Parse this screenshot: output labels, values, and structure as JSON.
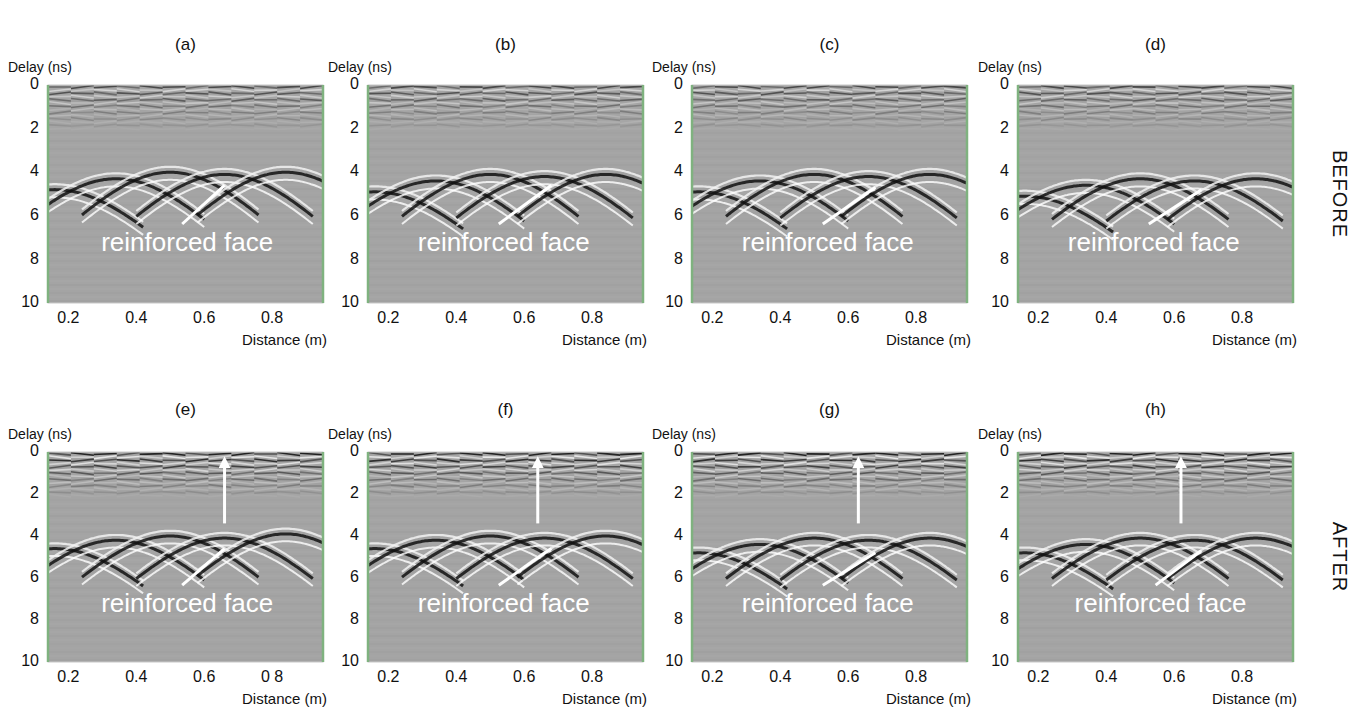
{
  "chart_data": [
    {
      "type": "radargram",
      "title": "(a)",
      "x_label": "Distance (m)",
      "y_label": "Delay (ns)",
      "xlim": [
        0.14,
        0.95
      ],
      "ylim": [
        0,
        10
      ],
      "xticks": [
        0.2,
        0.4,
        0.6,
        0.8
      ],
      "yticks": [
        0,
        2,
        4,
        6,
        8,
        10
      ],
      "reflectors": {
        "x": [
          0.16,
          0.34,
          0.5,
          0.66,
          0.84
        ],
        "delay": [
          4.8,
          4.3,
          4.0,
          4.1,
          4.0
        ]
      },
      "annotation": {
        "text": "reinforced face",
        "x": 0.55,
        "y": 7.3,
        "point_x": 0.66,
        "point_y": 4.6
      }
    },
    {
      "type": "radargram",
      "title": "(b)",
      "x_label": "Distance (m)",
      "y_label": "Delay (ns)",
      "xlim": [
        0.14,
        0.95
      ],
      "ylim": [
        0,
        10
      ],
      "xticks": [
        0.2,
        0.4,
        0.6,
        0.8
      ],
      "yticks": [
        0,
        2,
        4,
        6,
        8,
        10
      ],
      "reflectors": {
        "x": [
          0.16,
          0.34,
          0.5,
          0.66,
          0.84
        ],
        "delay": [
          4.9,
          4.4,
          4.1,
          4.2,
          4.1
        ]
      },
      "annotation": {
        "text": "reinforced face",
        "x": 0.54,
        "y": 7.3,
        "point_x": 0.68,
        "point_y": 4.6
      }
    },
    {
      "type": "radargram",
      "title": "(c)",
      "x_label": "Distance (m)",
      "y_label": "Delay (ns)",
      "xlim": [
        0.14,
        0.95
      ],
      "ylim": [
        0,
        10
      ],
      "xticks": [
        0.2,
        0.4,
        0.6,
        0.8
      ],
      "yticks": [
        0,
        2,
        4,
        6,
        8,
        10
      ],
      "reflectors": {
        "x": [
          0.16,
          0.34,
          0.5,
          0.66,
          0.84
        ],
        "delay": [
          4.9,
          4.4,
          4.1,
          4.2,
          4.1
        ]
      },
      "annotation": {
        "text": "reinforced face",
        "x": 0.54,
        "y": 7.3,
        "point_x": 0.68,
        "point_y": 4.7
      }
    },
    {
      "type": "radargram",
      "title": "(d)",
      "x_label": "Distance (m)",
      "y_label": "Delay (ns)",
      "xlim": [
        0.14,
        0.95
      ],
      "ylim": [
        0,
        10
      ],
      "xticks": [
        0.2,
        0.4,
        0.6,
        0.8
      ],
      "yticks": [
        0,
        2,
        4,
        6,
        8,
        10
      ],
      "reflectors": {
        "x": [
          0.16,
          0.34,
          0.5,
          0.66,
          0.84
        ],
        "delay": [
          5.1,
          4.6,
          4.3,
          4.4,
          4.3
        ]
      },
      "annotation": {
        "text": "reinforced face",
        "x": 0.54,
        "y": 7.3,
        "point_x": 0.68,
        "point_y": 4.8
      }
    },
    {
      "type": "radargram",
      "title": "(e)",
      "x_label": "Distance (m)",
      "y_label": "Delay (ns)",
      "xlim": [
        0.14,
        0.95
      ],
      "ylim": [
        0,
        10
      ],
      "xticks": [
        0.2,
        0.4,
        0.6,
        {
          "value": 0.8,
          "label": "0 8"
        }
      ],
      "yticks": [
        0,
        2,
        4,
        6,
        8,
        10
      ],
      "reflectors": {
        "x": [
          0.16,
          0.34,
          0.5,
          0.66,
          0.84
        ],
        "delay": [
          4.6,
          4.2,
          4.0,
          4.1,
          3.9
        ]
      },
      "annotation": {
        "text": "reinforced face",
        "x": 0.55,
        "y": 7.3,
        "point_x": 0.66,
        "point_y": 4.6
      },
      "arrow": {
        "x": 0.66,
        "y0": 3.4,
        "y1": 0.2
      }
    },
    {
      "type": "radargram",
      "title": "(f)",
      "x_label": "Distance (m)",
      "y_label": "Delay (ns)",
      "xlim": [
        0.14,
        0.95
      ],
      "ylim": [
        0,
        10
      ],
      "xticks": [
        0.2,
        0.4,
        0.6,
        0.8
      ],
      "yticks": [
        0,
        2,
        4,
        6,
        8,
        10
      ],
      "reflectors": {
        "x": [
          0.16,
          0.34,
          0.5,
          0.66,
          0.84
        ],
        "delay": [
          4.6,
          4.2,
          4.0,
          4.1,
          4.0
        ]
      },
      "annotation": {
        "text": "reinforced face",
        "x": 0.54,
        "y": 7.3,
        "point_x": 0.68,
        "point_y": 4.6
      },
      "arrow": {
        "x": 0.64,
        "y0": 3.4,
        "y1": 0.2
      }
    },
    {
      "type": "radargram",
      "title": "(g)",
      "x_label": "Distance (m)",
      "y_label": "Delay (ns)",
      "xlim": [
        0.14,
        0.95
      ],
      "ylim": [
        0,
        10
      ],
      "xticks": [
        0.2,
        0.4,
        0.6,
        0.8
      ],
      "yticks": [
        0,
        2,
        4,
        6,
        8,
        10
      ],
      "reflectors": {
        "x": [
          0.16,
          0.34,
          0.5,
          0.66,
          0.84
        ],
        "delay": [
          4.8,
          4.4,
          4.1,
          4.2,
          4.1
        ]
      },
      "annotation": {
        "text": "reinforced face",
        "x": 0.54,
        "y": 7.3,
        "point_x": 0.68,
        "point_y": 4.8
      },
      "arrow": {
        "x": 0.63,
        "y0": 3.4,
        "y1": 0.2
      }
    },
    {
      "type": "radargram",
      "title": "(h)",
      "x_label": "Distance (m)",
      "y_label": "Delay (ns)",
      "xlim": [
        0.14,
        0.95
      ],
      "ylim": [
        0,
        10
      ],
      "xticks": [
        0.2,
        0.4,
        0.6,
        0.8
      ],
      "yticks": [
        0,
        2,
        4,
        6,
        8,
        10
      ],
      "reflectors": {
        "x": [
          0.16,
          0.34,
          0.5,
          0.66,
          0.84
        ],
        "delay": [
          4.8,
          4.4,
          4.1,
          4.2,
          4.1
        ]
      },
      "annotation": {
        "text": "reinforced face",
        "x": 0.56,
        "y": 7.3,
        "point_x": 0.68,
        "point_y": 4.7
      },
      "arrow": {
        "x": 0.62,
        "y0": 3.4,
        "y1": 0.2
      }
    }
  ],
  "rows": [
    {
      "label": "BEFORE"
    },
    {
      "label": "AFTER"
    }
  ]
}
